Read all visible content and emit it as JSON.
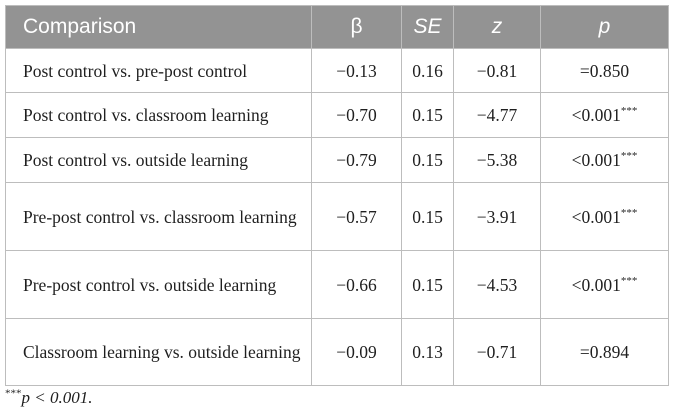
{
  "table": {
    "headers": [
      "Comparison",
      "β",
      "SE",
      "z",
      "p"
    ],
    "rows": [
      {
        "comparison": "Post control vs. pre-post control",
        "beta": "−0.13",
        "se": "0.16",
        "z": "−0.81",
        "p": "=0.850",
        "sig": ""
      },
      {
        "comparison": "Post control vs. classroom learning",
        "beta": "−0.70",
        "se": "0.15",
        "z": "−4.77",
        "p": "<0.001",
        "sig": "***"
      },
      {
        "comparison": "Post control vs. outside learning",
        "beta": "−0.79",
        "se": "0.15",
        "z": "−5.38",
        "p": "<0.001",
        "sig": "***"
      },
      {
        "comparison": "Pre-post control vs. classroom learning",
        "beta": "−0.57",
        "se": "0.15",
        "z": "−3.91",
        "p": "<0.001",
        "sig": "***"
      },
      {
        "comparison": "Pre-post control vs. outside learning",
        "beta": "−0.66",
        "se": "0.15",
        "z": "−4.53",
        "p": "<0.001",
        "sig": "***"
      },
      {
        "comparison": "Classroom learning vs. outside learning",
        "beta": "−0.09",
        "se": "0.13",
        "z": "−0.71",
        "p": "=0.894",
        "sig": ""
      }
    ]
  },
  "footnote": {
    "marker": "***",
    "text": "p < 0.001."
  }
}
